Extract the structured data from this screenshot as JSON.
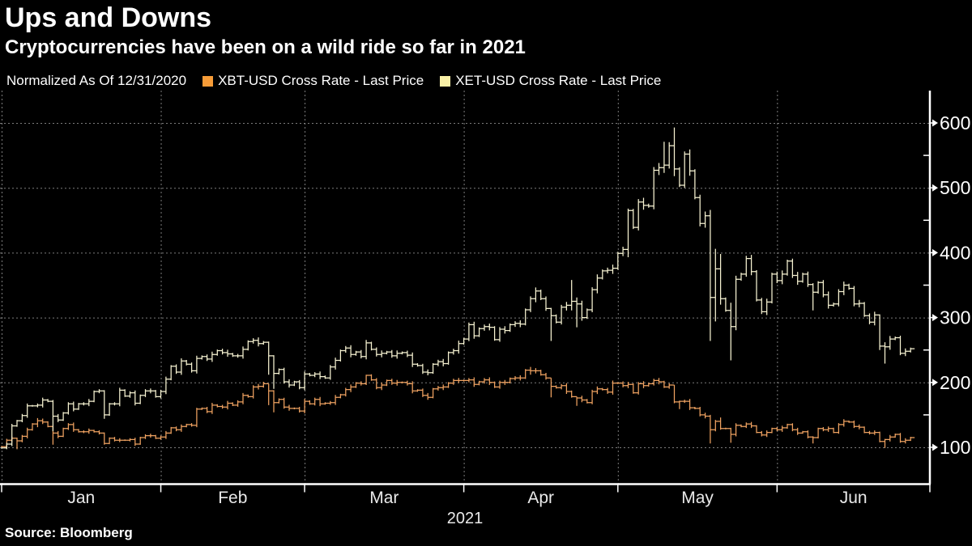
{
  "header": {
    "title": "Ups and Downs",
    "subtitle": "Cryptocurrencies have been on a wild ride so far in 2021"
  },
  "legend": {
    "note": "Normalized As Of 12/31/2020",
    "items": [
      {
        "label": "XBT-USD Cross Rate - Last Price",
        "color": "#F79C38"
      },
      {
        "label": "XET-USD Cross Rate - Last Price",
        "color": "#F8EFA6"
      }
    ]
  },
  "source": "Source: Bloomberg",
  "chart_data": {
    "type": "bar",
    "title": "Ups and Downs",
    "subtitle": "Cryptocurrencies have been on a wild ride so far in 2021",
    "normalized_as_of": "12/31/2020",
    "x_axis": {
      "year_label": "2021",
      "month_labels": [
        "Jan",
        "Feb",
        "Mar",
        "Apr",
        "May",
        "Jun"
      ],
      "month_start_day_index": [
        0,
        31,
        59,
        90,
        120,
        151
      ],
      "days_total": 178
    },
    "y_axis": {
      "ticks": [
        100,
        200,
        300,
        400,
        500,
        600
      ],
      "minor_ticks": [
        150,
        250,
        350,
        450,
        550
      ],
      "grid": true,
      "side": "right"
    },
    "legend_position": "top",
    "series": [
      {
        "name": "XBT-USD Cross Rate - Last Price",
        "color": "#EFA261",
        "closes": [
          101,
          111,
          114,
          110,
          117,
          127,
          136,
          141,
          139,
          132,
          122,
          117,
          129,
          135,
          127,
          124,
          124,
          126,
          124,
          122,
          106,
          114,
          111,
          111,
          111,
          112,
          105,
          115,
          118,
          118,
          114,
          116,
          122,
          130,
          127,
          132,
          135,
          134,
          159,
          160,
          155,
          165,
          163,
          162,
          168,
          165,
          170,
          180,
          178,
          193,
          194,
          198,
          187,
          169,
          174,
          162,
          160,
          160,
          156,
          171,
          167,
          174,
          167,
          168,
          169,
          177,
          181,
          189,
          193,
          199,
          198,
          211,
          204,
          192,
          196,
          203,
          199,
          200,
          200,
          198,
          187,
          188,
          180,
          177,
          190,
          192,
          193,
          199,
          203,
          203,
          203,
          204,
          197,
          201,
          204,
          200,
          193,
          200,
          200,
          206,
          207,
          207,
          219,
          218,
          218,
          212,
          207,
          194,
          192,
          195,
          186,
          178,
          176,
          173,
          169,
          186,
          190,
          189,
          185,
          199,
          199,
          195,
          197,
          184,
          198,
          195,
          198,
          203,
          201,
          193,
          196,
          170,
          171,
          171,
          161,
          160,
          150,
          148,
          127,
          140,
          129,
          129,
          120,
          134,
          132,
          136,
          133,
          123,
          119,
          123,
          129,
          127,
          130,
          135,
          127,
          122,
          124,
          116,
          115,
          129,
          127,
          129,
          123,
          135,
          140,
          139,
          132,
          131,
          123,
          122,
          123,
          109,
          112,
          116,
          120,
          109,
          111,
          115
        ],
        "hl_overrides": [
          [
            3,
            115,
            97
          ],
          [
            7,
            145,
            131
          ],
          [
            10,
            133,
            104
          ],
          [
            20,
            123,
            104
          ],
          [
            38,
            161,
            131
          ],
          [
            51,
            201,
            192
          ],
          [
            52,
            198,
            165
          ],
          [
            53,
            188,
            154
          ],
          [
            71,
            212,
            196
          ],
          [
            103,
            224,
            212
          ],
          [
            107,
            207,
            177
          ],
          [
            112,
            178,
            164
          ],
          [
            131,
            196,
            168
          ],
          [
            132,
            172,
            159
          ],
          [
            138,
            150,
            106
          ],
          [
            140,
            146,
            127
          ],
          [
            142,
            130,
            107
          ],
          [
            158,
            117,
            106
          ],
          [
            172,
            113,
            99
          ]
        ]
      },
      {
        "name": "XET-USD Cross Rate - Last Price",
        "color": "#F7F3D2",
        "closes": [
          99,
          105,
          133,
          141,
          149,
          164,
          164,
          165,
          173,
          171,
          148,
          142,
          153,
          167,
          159,
          167,
          167,
          171,
          186,
          187,
          150,
          167,
          167,
          188,
          179,
          184,
          168,
          180,
          187,
          187,
          178,
          186,
          205,
          225,
          216,
          233,
          228,
          218,
          237,
          240,
          236,
          243,
          249,
          246,
          244,
          241,
          241,
          251,
          263,
          265,
          260,
          262,
          241,
          214,
          220,
          201,
          196,
          201,
          192,
          213,
          211,
          213,
          209,
          207,
          224,
          234,
          249,
          253,
          243,
          247,
          240,
          261,
          251,
          243,
          245,
          247,
          241,
          245,
          246,
          242,
          228,
          226,
          216,
          215,
          228,
          232,
          229,
          246,
          249,
          260,
          267,
          289,
          272,
          283,
          286,
          285,
          266,
          282,
          280,
          289,
          291,
          290,
          312,
          329,
          341,
          329,
          314,
          303,
          293,
          316,
          319,
          325,
          321,
          300,
          312,
          343,
          361,
          372,
          373,
          376,
          399,
          405,
          465,
          439,
          478,
          473,
          472,
          527,
          531,
          535,
          565,
          529,
          504,
          552,
          526,
          485,
          445,
          457,
          331,
          375,
          329,
          311,
          286,
          359,
          367,
          391,
          371,
          327,
          309,
          324,
          367,
          357,
          367,
          387,
          365,
          356,
          367,
          351,
          339,
          354,
          335,
          319,
          321,
          340,
          350,
          345,
          321,
          322,
          303,
          293,
          304,
          256,
          255,
          267,
          269,
          245,
          248,
          252
        ],
        "hl_overrides": [
          [
            10,
            173,
            125
          ],
          [
            20,
            188,
            144
          ],
          [
            52,
            263,
            212
          ],
          [
            53,
            242,
            190
          ],
          [
            107,
            315,
            264
          ],
          [
            111,
            358,
            311
          ],
          [
            112,
            331,
            285
          ],
          [
            122,
            468,
            393
          ],
          [
            129,
            571,
            523
          ],
          [
            131,
            593,
            518
          ],
          [
            133,
            556,
            500
          ],
          [
            138,
            466,
            264
          ],
          [
            139,
            406,
            294
          ],
          [
            140,
            398,
            320
          ],
          [
            142,
            323,
            234
          ],
          [
            158,
            353,
            311
          ],
          [
            171,
            305,
            250
          ],
          [
            172,
            262,
            229
          ]
        ]
      }
    ]
  }
}
